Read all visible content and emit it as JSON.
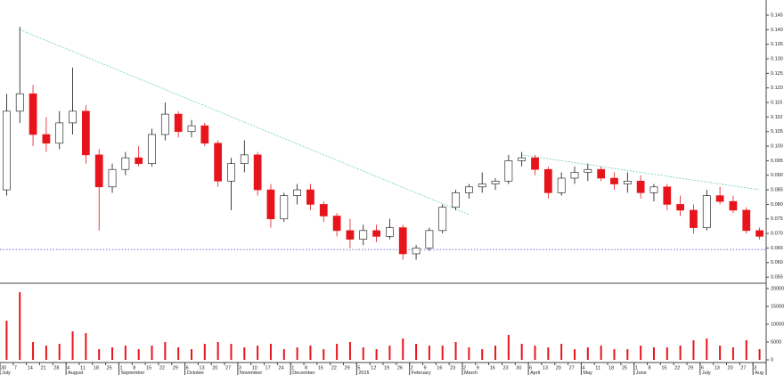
{
  "chart_data": {
    "type": "candlestick",
    "categories": [
      "30",
      "7",
      "14",
      "21",
      "28",
      "4",
      "11",
      "18",
      "25",
      "1",
      "8",
      "15",
      "22",
      "29",
      "6",
      "13",
      "20",
      "27",
      "3",
      "10",
      "17",
      "24",
      "1",
      "8",
      "15",
      "22",
      "29",
      "5",
      "12",
      "19",
      "26",
      "2",
      "9",
      "16",
      "23",
      "2",
      "9",
      "16",
      "23",
      "30",
      "6",
      "13",
      "20",
      "27",
      "4",
      "11",
      "18",
      "25",
      "1",
      "8",
      "15",
      "22",
      "29",
      "6",
      "13",
      "20",
      "27",
      "3"
    ],
    "month_labels": [
      "July",
      null,
      null,
      null,
      null,
      "August",
      null,
      null,
      null,
      "September",
      null,
      null,
      null,
      null,
      "October",
      null,
      null,
      null,
      "November",
      null,
      null,
      null,
      "December",
      null,
      null,
      null,
      null,
      "2015",
      null,
      null,
      null,
      "February",
      null,
      null,
      null,
      "March",
      null,
      null,
      null,
      null,
      "April",
      null,
      null,
      null,
      "May",
      null,
      null,
      null,
      "June",
      null,
      null,
      null,
      null,
      "July",
      null,
      null,
      null,
      "Aug"
    ],
    "open": [
      0.085,
      0.112,
      0.118,
      0.104,
      0.101,
      0.108,
      0.112,
      0.097,
      0.086,
      0.092,
      0.096,
      0.094,
      0.104,
      0.111,
      0.105,
      0.107,
      0.101,
      0.088,
      0.094,
      0.097,
      0.085,
      0.075,
      0.083,
      0.085,
      0.08,
      0.076,
      0.071,
      0.068,
      0.071,
      0.069,
      0.072,
      0.063,
      0.065,
      0.071,
      0.079,
      0.084,
      0.086,
      0.087,
      0.088,
      0.095,
      0.096,
      0.092,
      0.084,
      0.089,
      0.091,
      0.092,
      0.089,
      0.087,
      0.088,
      0.084,
      0.086,
      0.08,
      0.078,
      0.072,
      0.083,
      0.081,
      0.078,
      0.071
    ],
    "high": [
      0.118,
      0.141,
      0.121,
      0.11,
      0.112,
      0.127,
      0.114,
      0.099,
      0.094,
      0.098,
      0.1,
      0.106,
      0.115,
      0.112,
      0.109,
      0.108,
      0.102,
      0.096,
      0.102,
      0.098,
      0.087,
      0.084,
      0.087,
      0.087,
      0.081,
      0.077,
      0.075,
      0.073,
      0.073,
      0.075,
      0.073,
      0.066,
      0.072,
      0.08,
      0.085,
      0.087,
      0.091,
      0.089,
      0.097,
      0.098,
      0.097,
      0.093,
      0.091,
      0.093,
      0.094,
      0.093,
      0.091,
      0.091,
      0.09,
      0.087,
      0.087,
      0.083,
      0.08,
      0.085,
      0.086,
      0.083,
      0.079,
      0.072
    ],
    "low": [
      0.083,
      0.108,
      0.1,
      0.098,
      0.099,
      0.104,
      0.094,
      0.071,
      0.084,
      0.09,
      0.093,
      0.093,
      0.102,
      0.103,
      0.103,
      0.1,
      0.086,
      0.078,
      0.091,
      0.083,
      0.072,
      0.074,
      0.08,
      0.078,
      0.074,
      0.069,
      0.065,
      0.066,
      0.067,
      0.068,
      0.061,
      0.061,
      0.064,
      0.07,
      0.078,
      0.082,
      0.084,
      0.085,
      0.087,
      0.093,
      0.09,
      0.082,
      0.083,
      0.087,
      0.088,
      0.088,
      0.085,
      0.084,
      0.082,
      0.081,
      0.078,
      0.076,
      0.07,
      0.071,
      0.08,
      0.077,
      0.07,
      0.068
    ],
    "close": [
      0.112,
      0.118,
      0.104,
      0.101,
      0.108,
      0.112,
      0.097,
      0.086,
      0.092,
      0.096,
      0.094,
      0.104,
      0.111,
      0.105,
      0.107,
      0.101,
      0.088,
      0.094,
      0.097,
      0.085,
      0.075,
      0.083,
      0.085,
      0.08,
      0.076,
      0.071,
      0.068,
      0.071,
      0.069,
      0.072,
      0.063,
      0.065,
      0.071,
      0.079,
      0.084,
      0.086,
      0.087,
      0.088,
      0.095,
      0.096,
      0.092,
      0.084,
      0.089,
      0.091,
      0.092,
      0.089,
      0.087,
      0.088,
      0.084,
      0.086,
      0.08,
      0.078,
      0.072,
      0.083,
      0.081,
      0.078,
      0.071,
      0.069
    ],
    "up_color": "#ffffff",
    "down_color": "#e8141c",
    "ylim": [
      0.0529,
      0.1502
    ],
    "yticks": [
      0.055,
      {
        "value": 0.06,
        "label": "0.060"
      },
      0.065,
      {
        "value": 0.07,
        "label": "0.070"
      },
      0.075,
      {
        "value": 0.08,
        "label": "0.080"
      },
      0.085,
      {
        "value": 0.09,
        "label": "0.090"
      },
      0.095,
      {
        "value": 0.1,
        "label": "0.100"
      },
      0.105,
      {
        "value": 0.11,
        "label": "0.110"
      },
      0.115,
      {
        "value": 0.12,
        "label": "0.120"
      },
      0.125,
      {
        "value": 0.13,
        "label": "0.130"
      },
      0.135,
      {
        "value": 0.14,
        "label": "0.140"
      },
      0.145
    ],
    "trendlines": [
      {
        "x": [
          1,
          35
        ],
        "y": [
          0.14,
          0.0765
        ],
        "color": "#6fcfb5"
      },
      {
        "x": [
          39,
          57
        ],
        "y": [
          0.097,
          0.085
        ],
        "color": "#6fcfb5"
      }
    ],
    "support": {
      "value": 0.0645,
      "color": "#3a3ad0"
    },
    "volume": {
      "values": [
        11000,
        19000,
        5000,
        4000,
        4500,
        8000,
        7500,
        3000,
        3500,
        4000,
        3000,
        4000,
        5000,
        3500,
        3000,
        4500,
        5000,
        4500,
        3500,
        4000,
        4500,
        3000,
        3500,
        4000,
        3000,
        4500,
        5000,
        3500,
        3000,
        4000,
        6000,
        4500,
        4000,
        4000,
        5000,
        3500,
        3000,
        4000,
        7000,
        4500,
        4000,
        3500,
        4500,
        3000,
        3500,
        4000,
        3000,
        3000,
        4000,
        3500,
        3500,
        4000,
        5500,
        6000,
        4000,
        3500,
        5500,
        3000
      ],
      "color": "#e8141c",
      "ylim": [
        0,
        21000
      ],
      "yticks": [
        0,
        5000,
        10000,
        15000,
        20000
      ]
    }
  }
}
